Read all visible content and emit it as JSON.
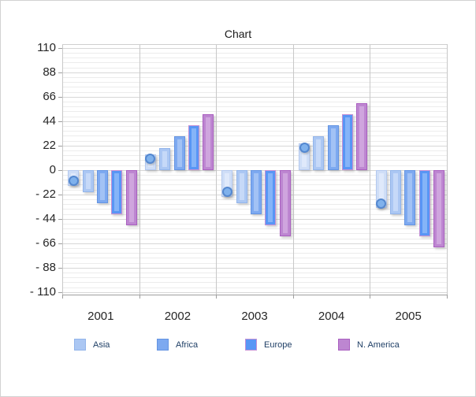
{
  "window": {
    "background": "#ffffff",
    "border_color": "#d2d2d2"
  },
  "chart_data": {
    "type": "bar",
    "title": "Chart",
    "categories": [
      "2001",
      "2002",
      "2003",
      "2004",
      "2005"
    ],
    "series": [
      {
        "name": "",
        "style": "bar-with-point-marker",
        "in_legend": false,
        "values": [
          -10,
          10,
          -20,
          20,
          -30
        ],
        "fill": "#cfdef7",
        "border": "#b4c9ef",
        "inner": "#dfe9fb",
        "marker_fill": "#7fb1ec",
        "marker_border": "#5488d0"
      },
      {
        "name": "Asia",
        "style": "bar",
        "in_legend": true,
        "values": [
          -20,
          20,
          -30,
          30,
          -40
        ],
        "fill": "#abc7f3",
        "border": "#93b5ea",
        "inner": "#c6d9f8"
      },
      {
        "name": "Africa",
        "style": "bar",
        "in_legend": true,
        "values": [
          -30,
          30,
          -40,
          40,
          -50
        ],
        "fill": "#7da9f0",
        "border": "#6494e2",
        "inner": "#a2c2f5"
      },
      {
        "name": "Europe",
        "style": "bar",
        "in_legend": true,
        "values": [
          -40,
          40,
          -50,
          50,
          -60
        ],
        "fill": "#5896f5",
        "border": "#c490d5",
        "inner": "#85b4f8"
      },
      {
        "name": "N. America",
        "style": "bar",
        "in_legend": true,
        "values": [
          -50,
          50,
          -60,
          60,
          -70
        ],
        "fill": "#bd86d1",
        "border": "#aa60c0",
        "inner": "#cfa5de"
      }
    ],
    "y_axis": {
      "tick_values": [
        110,
        88,
        66,
        44,
        22,
        0,
        -22,
        -44,
        -66,
        -88,
        -110
      ],
      "tick_labels": [
        "110",
        "88",
        "66",
        "44",
        "22",
        "0",
        "- 22",
        "- 44",
        "- 66",
        "- 88",
        "- 110"
      ],
      "major_step": 22,
      "minor_step": 4.4,
      "range": [
        -113,
        113
      ]
    },
    "x_axis": {
      "tick_labels": [
        "2001",
        "2002",
        "2003",
        "2004",
        "2005"
      ]
    },
    "legend": {
      "position": "bottom",
      "items": [
        "Asia",
        "Africa",
        "Europe",
        "N. America"
      ]
    },
    "grid": {
      "minor_color": "#ececec",
      "major_color": "#d7d7d7",
      "separator_color": "#c8c8c8",
      "axis_line_color": "#9e9e9e",
      "plot_border_color": "#cfcfcf"
    },
    "text_colors": {
      "title": "#1a1a1a",
      "axis_labels": "#262626",
      "legend_labels": "#1f3f66"
    }
  }
}
